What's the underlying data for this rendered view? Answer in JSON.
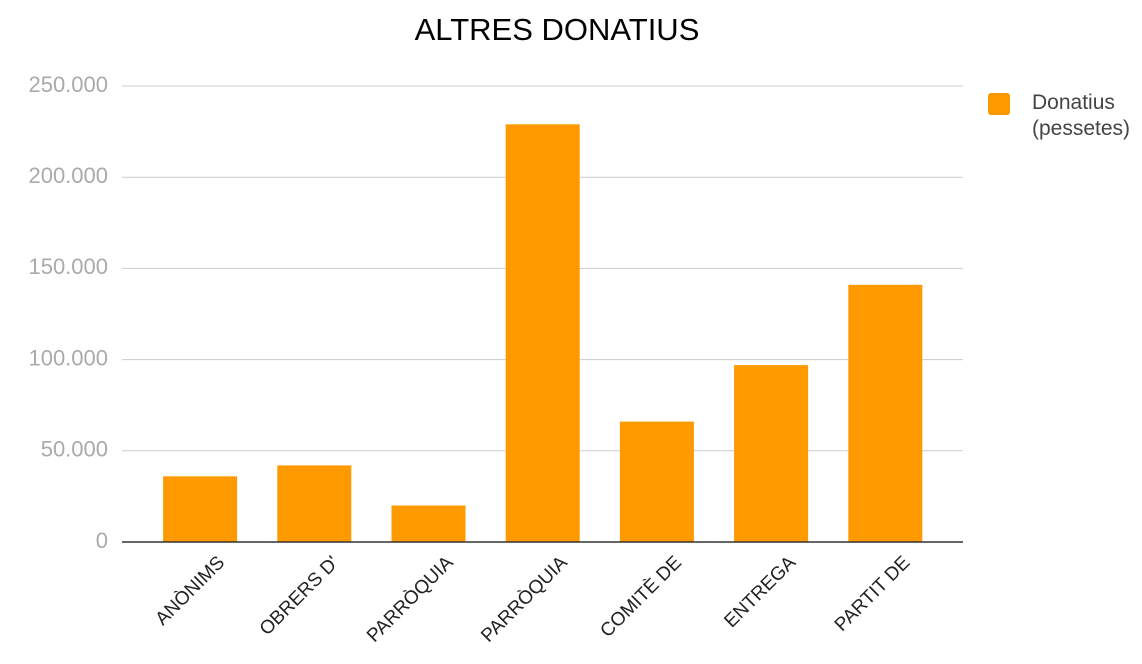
{
  "chart_data": {
    "type": "bar",
    "title": "ALTRES DONATIUS",
    "categories": [
      "ANÒNIMS",
      "OBRERS D'",
      "PARRÒQUIA",
      "PARRÒQUIA",
      "COMITÈ DE",
      "ENTREGA",
      "PARTIT DE"
    ],
    "series": [
      {
        "name": "Donatius (pessetes)",
        "color": "#ff9900",
        "values": [
          36000,
          42000,
          20000,
          229000,
          66000,
          97000,
          141000
        ]
      }
    ],
    "ylim": [
      0,
      250000
    ],
    "yticks": [
      0,
      {
        "value": 50000,
        "label": "50.000"
      },
      {
        "value": 100000,
        "label": "100.000"
      },
      {
        "value": 150000,
        "label": "150.000"
      },
      {
        "value": 200000,
        "label": "200.000"
      },
      {
        "value": 250000,
        "label": "250.000"
      }
    ],
    "grid": true,
    "legend": "right"
  }
}
